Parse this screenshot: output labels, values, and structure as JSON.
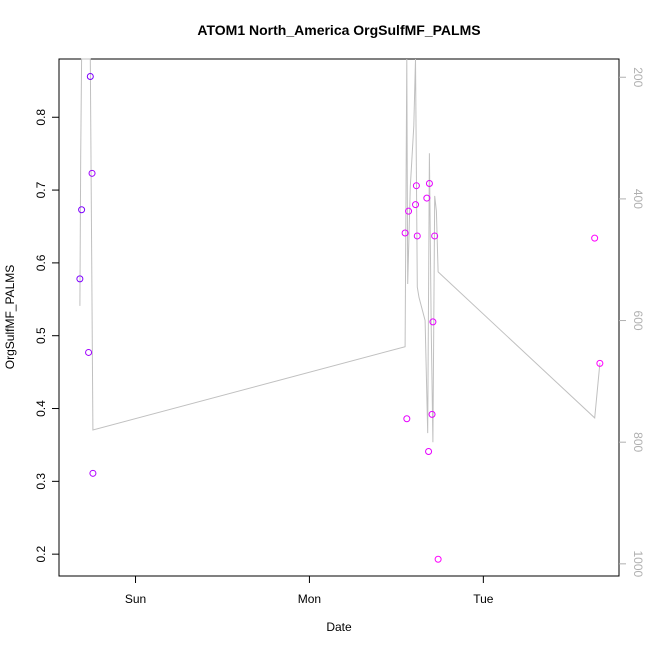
{
  "chart_data": {
    "type": "scatter",
    "title": "ATOM1 North_America OrgSulfMF_PALMS",
    "xlabel": "Date",
    "ylabel": "OrgSulfMF_PALMS",
    "x_ticks": [
      "Sun",
      "Mon",
      "Tue"
    ],
    "y_ticks": [
      "0.2",
      "0.3",
      "0.4",
      "0.5",
      "0.6",
      "0.7",
      "0.8"
    ],
    "y2_ticks": [
      "200",
      "400",
      "600",
      "800",
      "1000"
    ],
    "xlim_days": [
      -0.44,
      2.78
    ],
    "ylim": [
      0.17,
      0.88
    ],
    "y2lim_reversed": [
      1020,
      170
    ],
    "grid": false,
    "points": [
      {
        "t": -0.32,
        "y": 0.578,
        "color": "#7f00ff"
      },
      {
        "t": -0.31,
        "y": 0.673,
        "color": "#7f00ff"
      },
      {
        "t": -0.27,
        "y": 0.477,
        "color": "#a000ff"
      },
      {
        "t": -0.26,
        "y": 0.856,
        "color": "#7f00ff"
      },
      {
        "t": -0.25,
        "y": 0.723,
        "color": "#a000ff"
      },
      {
        "t": -0.245,
        "y": 0.311,
        "color": "#b000ff"
      },
      {
        "t": 1.55,
        "y": 0.641,
        "color": "#e600ff"
      },
      {
        "t": 1.56,
        "y": 0.386,
        "color": "#e600ff"
      },
      {
        "t": 1.57,
        "y": 0.671,
        "color": "#e600ff"
      },
      {
        "t": 1.61,
        "y": 0.68,
        "color": "#e600ff"
      },
      {
        "t": 1.615,
        "y": 0.706,
        "color": "#e600ff"
      },
      {
        "t": 1.62,
        "y": 0.637,
        "color": "#e600ff"
      },
      {
        "t": 1.675,
        "y": 0.689,
        "color": "#e600ff"
      },
      {
        "t": 1.685,
        "y": 0.341,
        "color": "#e600ff"
      },
      {
        "t": 1.69,
        "y": 0.709,
        "color": "#e600ff"
      },
      {
        "t": 1.705,
        "y": 0.392,
        "color": "#e600ff"
      },
      {
        "t": 1.71,
        "y": 0.519,
        "color": "#e600ff"
      },
      {
        "t": 1.72,
        "y": 0.637,
        "color": "#e600ff"
      },
      {
        "t": 1.74,
        "y": 0.193,
        "color": "#ff00ff"
      },
      {
        "t": 2.64,
        "y": 0.634,
        "color": "#ff00ff"
      },
      {
        "t": 2.67,
        "y": 0.462,
        "color": "#ff00ff"
      }
    ],
    "pressure_line": {
      "color": "#c0c0c0",
      "t": [
        -0.32,
        -0.315,
        -0.31,
        -0.305,
        -0.3,
        -0.27,
        -0.26,
        -0.245,
        1.55,
        1.56,
        1.565,
        1.58,
        1.6,
        1.61,
        1.62,
        1.63,
        1.665,
        1.68,
        1.69,
        1.7,
        1.71,
        1.72,
        1.73,
        1.74,
        2.64,
        2.67
      ],
      "p": [
        576,
        330,
        170,
        170,
        170,
        170,
        170,
        780,
        643,
        170,
        540,
        380,
        280,
        170,
        545,
        562,
        600,
        785,
        325,
        610,
        800,
        395,
        420,
        520,
        760,
        670
      ]
    }
  }
}
